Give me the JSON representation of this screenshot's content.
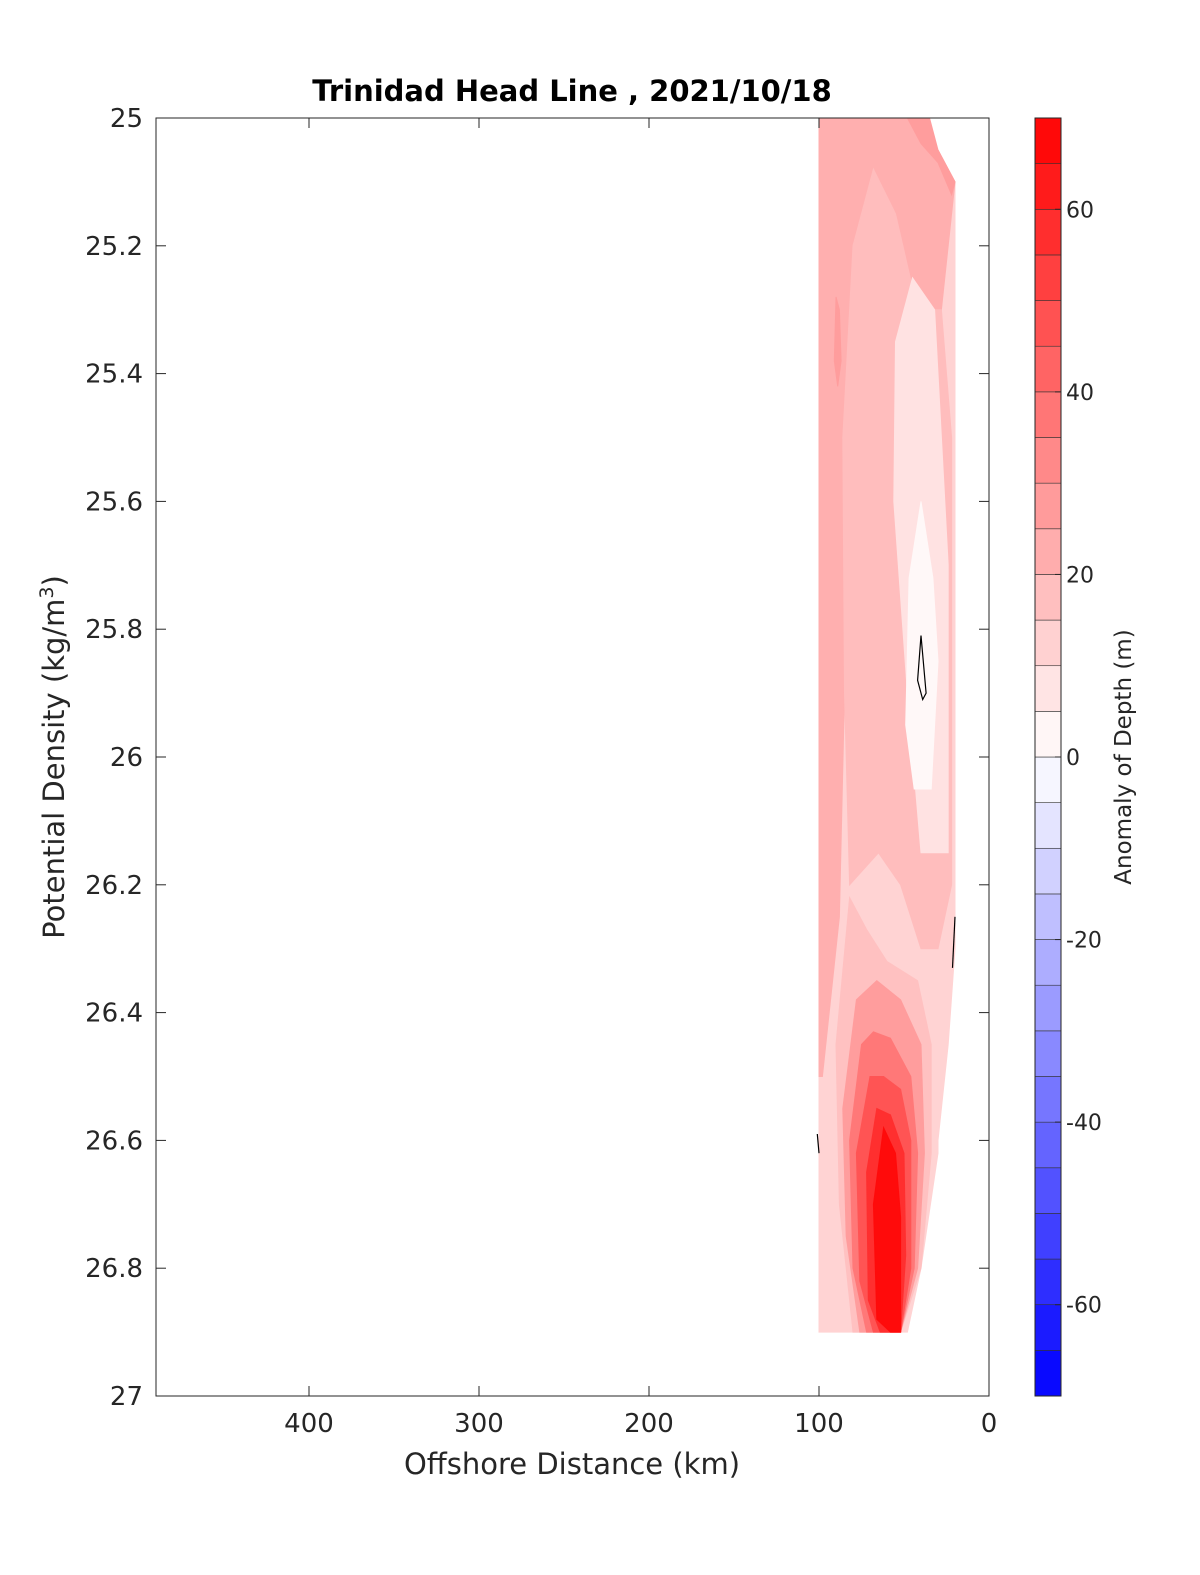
{
  "chart_data": {
    "type": "contourf",
    "title": "Trinidad Head Line , 2021/10/18",
    "xlabel": "Offshore Distance (km)",
    "ylabel_main": "Potential Density (kg/m",
    "ylabel_sup": "3",
    "ylabel_close": ")",
    "colorbar_label": "Anomaly of Depth (m)",
    "x_axis": {
      "range": [
        490,
        0
      ],
      "reversed": true,
      "ticks": [
        400,
        300,
        200,
        100,
        0
      ],
      "tick_labels": [
        "400",
        "300",
        "200",
        "100",
        "0"
      ]
    },
    "y_axis": {
      "range": [
        25,
        27
      ],
      "reversed": true,
      "ticks": [
        25,
        25.2,
        25.4,
        25.6,
        25.8,
        26,
        26.2,
        26.4,
        26.6,
        26.8,
        27
      ],
      "tick_labels": [
        "25",
        "25.2",
        "25.4",
        "25.6",
        "25.8",
        "26",
        "26.2",
        "26.4",
        "26.6",
        "26.8",
        "27"
      ]
    },
    "colorbar": {
      "range": [
        -70,
        70
      ],
      "step": 5,
      "ticks": [
        60,
        40,
        20,
        0,
        -20,
        -40,
        -60
      ],
      "tick_labels": [
        "60",
        "40",
        "20",
        "0",
        "-20",
        "-40",
        "-60"
      ],
      "colormap": "blue-white-red"
    },
    "data_extent": {
      "x": [
        100,
        20
      ],
      "y": [
        25,
        26.9
      ]
    },
    "regions": [
      {
        "name": "section-base",
        "anomaly": 12,
        "points": [
          [
            100,
            25
          ],
          [
            48,
            25
          ],
          [
            30,
            25.05
          ],
          [
            20,
            25.1
          ],
          [
            20,
            26.3
          ],
          [
            24,
            26.45
          ],
          [
            30,
            26.6
          ],
          [
            30,
            26.62
          ],
          [
            40,
            26.8
          ],
          [
            48,
            26.9
          ],
          [
            100,
            26.9
          ]
        ]
      },
      {
        "name": "offshore-band-upper",
        "anomaly": 22,
        "points": [
          [
            100,
            25
          ],
          [
            48,
            25
          ],
          [
            30,
            25.05
          ],
          [
            20,
            25.1
          ],
          [
            28,
            25.3
          ],
          [
            42,
            25.3
          ],
          [
            55,
            25.15
          ],
          [
            68,
            25.08
          ],
          [
            80,
            25.2
          ],
          [
            86,
            25.5
          ],
          [
            85,
            25.9
          ],
          [
            88,
            26.25
          ],
          [
            98,
            26.5
          ],
          [
            100,
            26.5
          ]
        ]
      },
      {
        "name": "inshore-edge-upper",
        "anomaly": 27,
        "points": [
          [
            48,
            25
          ],
          [
            35,
            25
          ],
          [
            30,
            25.05
          ],
          [
            20,
            25.1
          ],
          [
            22,
            25.12
          ],
          [
            30,
            25.07
          ],
          [
            40,
            25.04
          ]
        ]
      },
      {
        "name": "inner-zone-upper",
        "anomaly": 18,
        "points": [
          [
            80,
            25.2
          ],
          [
            68,
            25.08
          ],
          [
            55,
            25.15
          ],
          [
            42,
            25.3
          ],
          [
            28,
            25.3
          ],
          [
            22,
            25.5
          ],
          [
            22,
            26.2
          ],
          [
            30,
            26.3
          ],
          [
            40,
            26.3
          ],
          [
            52,
            26.2
          ],
          [
            65,
            26.15
          ],
          [
            82,
            26.2
          ],
          [
            85,
            25.9
          ],
          [
            86,
            25.5
          ]
        ]
      },
      {
        "name": "isolated-patch",
        "anomaly": 27,
        "points": [
          [
            90,
            25.28
          ],
          [
            88,
            25.3
          ],
          [
            87,
            25.38
          ],
          [
            89,
            25.42
          ],
          [
            91,
            25.38
          ]
        ]
      },
      {
        "name": "low-anomaly-core",
        "anomaly": 8,
        "points": [
          [
            55,
            25.35
          ],
          [
            45,
            25.25
          ],
          [
            32,
            25.3
          ],
          [
            24,
            25.7
          ],
          [
            24,
            26.15
          ],
          [
            40,
            26.15
          ],
          [
            48,
            25.9
          ],
          [
            56,
            25.6
          ]
        ]
      },
      {
        "name": "minimal-core",
        "anomaly": 2,
        "points": [
          [
            40,
            25.6
          ],
          [
            47,
            25.72
          ],
          [
            49,
            25.95
          ],
          [
            44,
            26.05
          ],
          [
            34,
            26.05
          ],
          [
            30,
            25.85
          ],
          [
            33,
            25.72
          ]
        ]
      },
      {
        "name": "deep-band-1",
        "anomaly": 17,
        "points": [
          [
            82,
            26.22
          ],
          [
            90,
            26.45
          ],
          [
            88,
            26.7
          ],
          [
            80,
            26.9
          ],
          [
            52,
            26.9
          ],
          [
            40,
            26.8
          ],
          [
            34,
            26.62
          ],
          [
            34,
            26.45
          ],
          [
            42,
            26.35
          ],
          [
            60,
            26.32
          ],
          [
            72,
            26.27
          ]
        ]
      },
      {
        "name": "deep-band-2",
        "anomaly": 27,
        "points": [
          [
            78,
            26.38
          ],
          [
            86,
            26.55
          ],
          [
            84,
            26.75
          ],
          [
            76,
            26.9
          ],
          [
            52,
            26.9
          ],
          [
            42,
            26.8
          ],
          [
            38,
            26.62
          ],
          [
            40,
            26.45
          ],
          [
            52,
            26.38
          ],
          [
            66,
            26.35
          ]
        ]
      },
      {
        "name": "deep-band-3",
        "anomaly": 37,
        "points": [
          [
            75,
            26.45
          ],
          [
            82,
            26.6
          ],
          [
            80,
            26.8
          ],
          [
            72,
            26.9
          ],
          [
            52,
            26.9
          ],
          [
            44,
            26.8
          ],
          [
            42,
            26.62
          ],
          [
            46,
            26.5
          ],
          [
            58,
            26.44
          ],
          [
            68,
            26.43
          ]
        ]
      },
      {
        "name": "deep-band-4",
        "anomaly": 47,
        "points": [
          [
            70,
            26.5
          ],
          [
            78,
            26.62
          ],
          [
            76,
            26.82
          ],
          [
            68,
            26.9
          ],
          [
            52,
            26.9
          ],
          [
            46,
            26.8
          ],
          [
            46,
            26.6
          ],
          [
            52,
            26.52
          ],
          [
            62,
            26.5
          ]
        ]
      },
      {
        "name": "deep-band-5",
        "anomaly": 57,
        "points": [
          [
            66,
            26.55
          ],
          [
            72,
            26.65
          ],
          [
            71,
            26.85
          ],
          [
            64,
            26.9
          ],
          [
            52,
            26.9
          ],
          [
            49,
            26.78
          ],
          [
            50,
            26.62
          ],
          [
            58,
            26.56
          ]
        ]
      },
      {
        "name": "deep-max",
        "anomaly": 67,
        "points": [
          [
            62,
            26.58
          ],
          [
            68,
            26.7
          ],
          [
            66,
            26.88
          ],
          [
            58,
            26.9
          ],
          [
            52,
            26.9
          ],
          [
            52,
            26.72
          ],
          [
            55,
            26.62
          ]
        ]
      }
    ],
    "zero_contours": [
      {
        "name": "zero-contour-small-loop",
        "points": [
          [
            40,
            25.81
          ],
          [
            37,
            25.9
          ],
          [
            39,
            25.91
          ],
          [
            42,
            25.88
          ],
          [
            40,
            25.81
          ]
        ]
      },
      {
        "name": "zero-contour-inshore",
        "points": [
          [
            20,
            26.25
          ],
          [
            21.5,
            26.33
          ]
        ]
      },
      {
        "name": "zero-contour-offshore",
        "points": [
          [
            101,
            26.59
          ],
          [
            100,
            26.62
          ]
        ]
      }
    ]
  }
}
